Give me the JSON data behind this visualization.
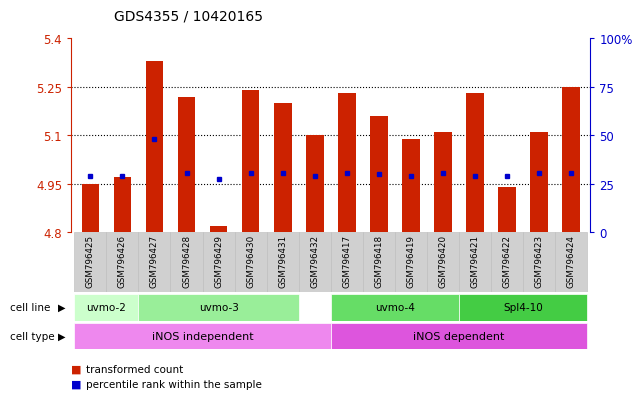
{
  "title": "GDS4355 / 10420165",
  "samples": [
    "GSM796425",
    "GSM796426",
    "GSM796427",
    "GSM796428",
    "GSM796429",
    "GSM796430",
    "GSM796431",
    "GSM796432",
    "GSM796417",
    "GSM796418",
    "GSM796419",
    "GSM796420",
    "GSM796421",
    "GSM796422",
    "GSM796423",
    "GSM796424"
  ],
  "bar_values": [
    4.95,
    4.97,
    5.33,
    5.22,
    4.82,
    5.24,
    5.2,
    5.1,
    5.23,
    5.16,
    5.09,
    5.11,
    5.23,
    4.94,
    5.11,
    5.25
  ],
  "dot_values": [
    4.975,
    4.975,
    5.09,
    4.985,
    4.965,
    4.985,
    4.985,
    4.975,
    4.985,
    4.98,
    4.975,
    4.985,
    4.975,
    4.975,
    4.985,
    4.985
  ],
  "ylim": [
    4.8,
    5.4
  ],
  "yticks": [
    4.8,
    4.95,
    5.1,
    5.25,
    5.4
  ],
  "ytick_labels": [
    "4.8",
    "4.95",
    "5.1",
    "5.25",
    "5.4"
  ],
  "right_yticks_pct": [
    0,
    25,
    50,
    75,
    100
  ],
  "right_ytick_labels": [
    "0",
    "25",
    "50",
    "75",
    "100%"
  ],
  "bar_color": "#cc2200",
  "dot_color": "#0000cc",
  "bar_bottom": 4.8,
  "cell_line_groups": [
    {
      "label": "uvmo-2",
      "start": 0,
      "end": 1,
      "color": "#ccffcc"
    },
    {
      "label": "uvmo-3",
      "start": 2,
      "end": 6,
      "color": "#99ee99"
    },
    {
      "label": "uvmo-4",
      "start": 8,
      "end": 11,
      "color": "#66dd66"
    },
    {
      "label": "Spl4-10",
      "start": 12,
      "end": 15,
      "color": "#44cc44"
    }
  ],
  "cell_type_groups": [
    {
      "label": "iNOS independent",
      "start": 0,
      "end": 7,
      "color": "#ee88ee"
    },
    {
      "label": "iNOS dependent",
      "start": 8,
      "end": 15,
      "color": "#dd55dd"
    }
  ],
  "legend_items": [
    {
      "label": "transformed count",
      "color": "#cc2200"
    },
    {
      "label": "percentile rank within the sample",
      "color": "#0000cc"
    }
  ],
  "axis_label_color_left": "#cc2200",
  "axis_label_color_right": "#0000cc",
  "xtick_bg_color": "#d0d0d0",
  "xtick_border_color": "#bbbbbb",
  "title_fontsize": 10
}
